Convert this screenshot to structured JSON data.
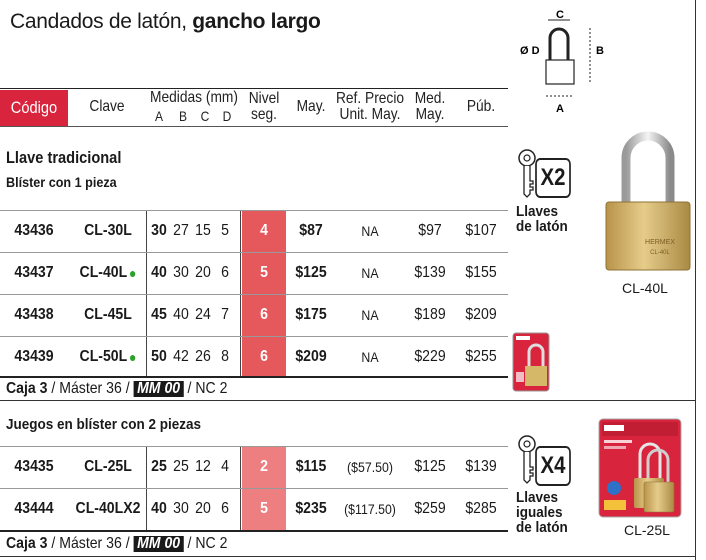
{
  "title": {
    "regular": "Candados de latón, ",
    "bold": "gancho largo"
  },
  "header": {
    "codigo": "Código",
    "clave": "Clave",
    "medidas": "Medidas (mm)",
    "medidas_cols": [
      "A",
      "B",
      "C",
      "D"
    ],
    "nivel": "Nivel",
    "nivel2": "seg.",
    "may": "May.",
    "ref1": "Ref. Precio",
    "ref2": "Unit. May.",
    "med1": "Med.",
    "med2": "May.",
    "pub": "Púb."
  },
  "diagram": {
    "c": "C",
    "b": "B",
    "a": "A",
    "d": "Ø D"
  },
  "section1": {
    "title": "Llave tradicional",
    "subtitle": "Blíster con 1 pieza",
    "rows": [
      {
        "codigo": "43436",
        "clave": "CL-30L",
        "dot": false,
        "a": "30",
        "b": "27",
        "c": "15",
        "d": "5",
        "nivel": "4",
        "may": "$87",
        "ref": "NA",
        "med": "$97",
        "pub": "$107"
      },
      {
        "codigo": "43437",
        "clave": "CL-40L",
        "dot": true,
        "a": "40",
        "b": "30",
        "c": "20",
        "d": "6",
        "nivel": "5",
        "may": "$125",
        "ref": "NA",
        "med": "$139",
        "pub": "$155"
      },
      {
        "codigo": "43438",
        "clave": "CL-45L",
        "dot": false,
        "a": "45",
        "b": "40",
        "c": "24",
        "d": "7",
        "nivel": "6",
        "may": "$175",
        "ref": "NA",
        "med": "$189",
        "pub": "$209"
      },
      {
        "codigo": "43439",
        "clave": "CL-50L",
        "dot": true,
        "a": "50",
        "b": "42",
        "c": "26",
        "d": "8",
        "nivel": "6",
        "may": "$209",
        "ref": "NA",
        "med": "$229",
        "pub": "$255"
      }
    ],
    "footer": {
      "caja": "Caja 3",
      "rest": " / Máster 36 / ",
      "mm": "MM 00",
      "nc": " / NC 2"
    },
    "keys_badge": "X2",
    "keys_label": [
      "Llaves",
      "de latón"
    ],
    "image_caption": "CL-40L",
    "lock_brand": "HERMEX",
    "lock_model": "CL-40L"
  },
  "section2": {
    "subtitle": "Juegos en blíster con 2 piezas",
    "rows": [
      {
        "codigo": "43435",
        "clave": "CL-25L",
        "dot": false,
        "a": "25",
        "b": "25",
        "c": "12",
        "d": "4",
        "nivel": "2",
        "may": "$115",
        "ref": "($57.50)",
        "med": "$125",
        "pub": "$139"
      },
      {
        "codigo": "43444",
        "clave": "CL-40LX2",
        "dot": false,
        "a": "40",
        "b": "30",
        "c": "20",
        "d": "6",
        "nivel": "5",
        "may": "$235",
        "ref": "($117.50)",
        "med": "$259",
        "pub": "$285"
      }
    ],
    "footer": {
      "caja": "Caja 3",
      "rest": " / Máster 36 / ",
      "mm": "MM 00",
      "nc": " / NC 2"
    },
    "keys_badge": "X4",
    "keys_label": [
      "Llaves",
      "iguales",
      "de latón"
    ],
    "image_caption": "CL-25L"
  },
  "colors": {
    "accent": "#d8243c",
    "nivel": "#e5585b",
    "nivel_light": "#ee7f80",
    "brass": "#c9a85a"
  }
}
